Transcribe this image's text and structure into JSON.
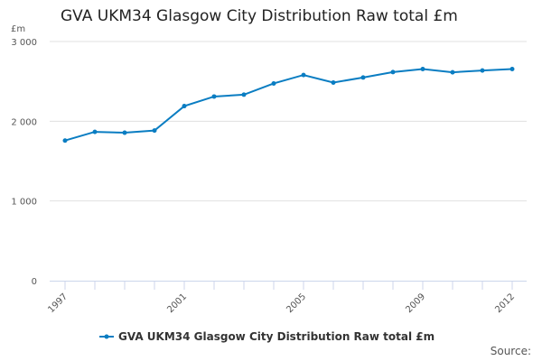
{
  "title": "GVA UKM34 Glasgow City Distribution Raw total £m",
  "source_label": "Source:",
  "chart_data": {
    "type": "line",
    "title": "GVA UKM34 Glasgow City Distribution Raw total £m",
    "ylabel": "£m",
    "xlabel": "",
    "ylim": [
      0,
      3000
    ],
    "yticks": [
      0,
      1000,
      2000,
      3000
    ],
    "ytick_labels": [
      "0",
      "1 000",
      "2 000",
      "3 000"
    ],
    "xticks_labeled": [
      1997,
      2001,
      2005,
      2009,
      2012
    ],
    "grid": "horizontal",
    "legend_placement": "bottom",
    "color": "#0a7dc2",
    "x": [
      1997,
      1998,
      1999,
      2000,
      2001,
      2002,
      2003,
      2004,
      2005,
      2006,
      2007,
      2008,
      2009,
      2010,
      2011,
      2012
    ],
    "series": [
      {
        "name": "GVA UKM34 Glasgow City Distribution Raw total £m",
        "values": [
          1758,
          1867,
          1856,
          1883,
          2190,
          2310,
          2333,
          2474,
          2580,
          2485,
          2549,
          2617,
          2655,
          2614,
          2636,
          2655
        ]
      }
    ]
  }
}
